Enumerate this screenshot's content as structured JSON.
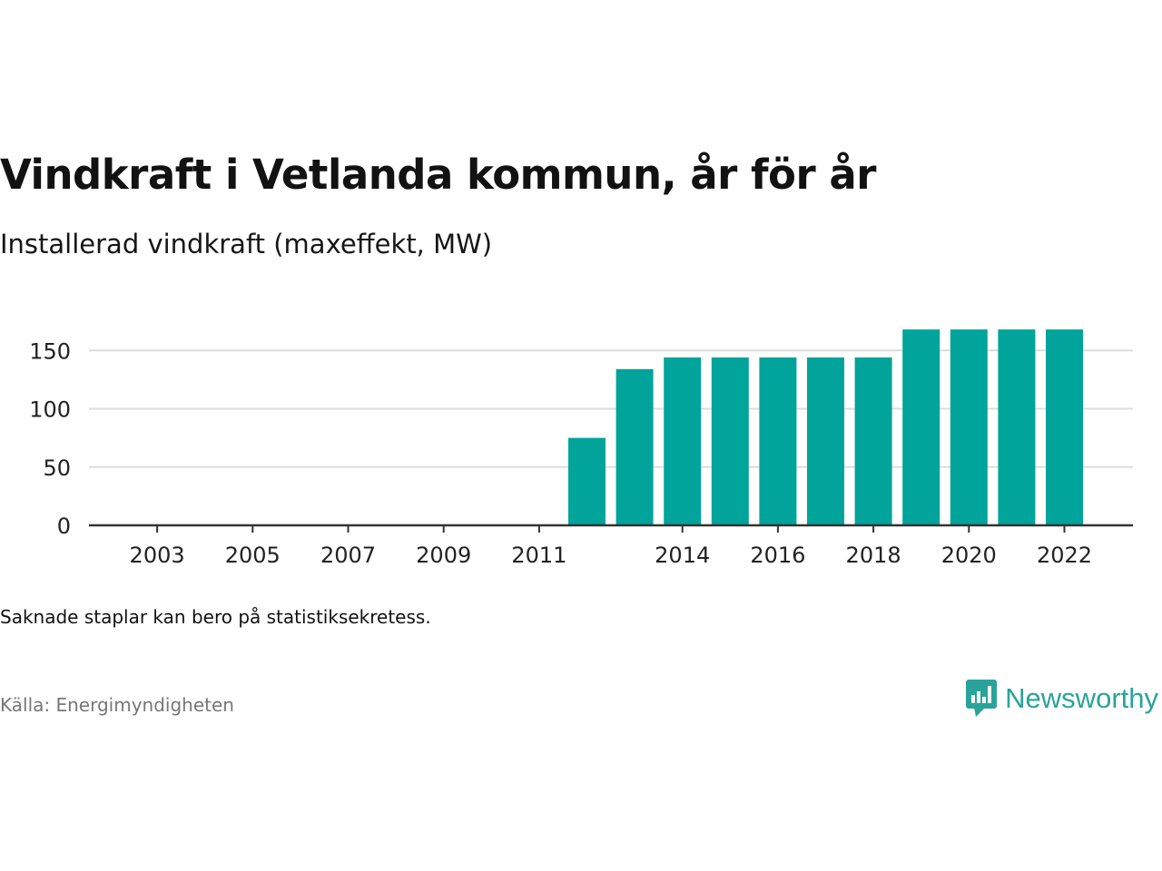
{
  "title": "Vindkraft i Vetlanda kommun, år för år",
  "subtitle": "Installerad vindkraft (maxeffekt, MW)",
  "note": "Saknade staplar kan bero på statistiksekretess.",
  "source": "Källa: Energimyndigheten",
  "brand": {
    "name": "Newsworthy",
    "icon": "newsworthy-logo-icon"
  },
  "colors": {
    "bar": "#00a49a",
    "brand": "#2aa39a",
    "grid": "#dddddd",
    "axis": "#333333"
  },
  "chart_data": {
    "type": "bar",
    "categories": [
      "2002",
      "2003",
      "2004",
      "2005",
      "2006",
      "2007",
      "2008",
      "2009",
      "2010",
      "2011",
      "2012",
      "2013",
      "2014",
      "2015",
      "2016",
      "2017",
      "2018",
      "2019",
      "2020",
      "2021",
      "2022"
    ],
    "values": [
      0,
      0,
      0,
      0,
      0,
      0,
      0,
      0,
      0,
      0,
      75,
      134,
      144,
      144,
      144,
      144,
      144,
      168,
      168,
      168,
      168
    ],
    "x_tick_labels": [
      "2003",
      "2005",
      "2007",
      "2009",
      "2011",
      "2014",
      "2016",
      "2018",
      "2020",
      "2022"
    ],
    "y_ticks": [
      0,
      50,
      100,
      150
    ],
    "ylim": [
      0,
      175
    ],
    "xlabel": "",
    "ylabel": "",
    "grid": true
  }
}
